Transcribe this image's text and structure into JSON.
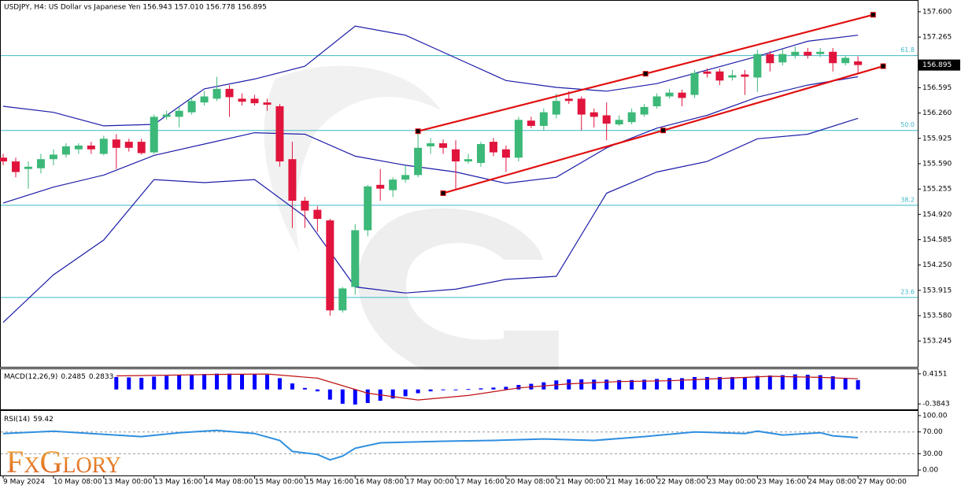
{
  "header": "USDJPY, H4:  US Dollar vs Japanese Yen  156.943 157.010 156.778 156.895",
  "logo": "FxGlory",
  "chart_data": [
    {
      "type": "candlestick",
      "xlim": [
        -0.19,
        72.75
      ],
      "xticks": [
        {
          "value": 0,
          "label": "9 May 2024"
        },
        {
          "value": 4,
          "label": "10 May 08:00"
        },
        {
          "value": 8,
          "label": "13 May 00:00"
        },
        {
          "value": 12,
          "label": "13 May 16:00"
        },
        {
          "value": 16,
          "label": "14 May 08:00"
        },
        {
          "value": 20,
          "label": "15 May 00:00"
        },
        {
          "value": 24,
          "label": "15 May 16:00"
        },
        {
          "value": 28,
          "label": "16 May 08:00"
        },
        {
          "value": 32,
          "label": "17 May 00:00"
        },
        {
          "value": 36,
          "label": "17 May 16:00"
        },
        {
          "value": 40,
          "label": "20 May 08:00"
        },
        {
          "value": 44,
          "label": "21 May 00:00"
        },
        {
          "value": 48,
          "label": "21 May 16:00"
        },
        {
          "value": 52,
          "label": "22 May 08:00"
        },
        {
          "value": 56,
          "label": "23 May 00:00"
        },
        {
          "value": 60,
          "label": "23 May 16:00"
        },
        {
          "value": 64,
          "label": "24 May 08:00"
        },
        {
          "value": 68,
          "label": "27 May 00:00"
        }
      ],
      "ylim": [
        152.903,
        157.745
      ],
      "yticks": [
        {
          "value": 157.6,
          "label": "157.600"
        },
        157.265,
        156.595,
        {
          "value": 156.26,
          "label": "156.260"
        },
        155.925,
        {
          "value": 155.59,
          "label": "155.590"
        },
        155.255,
        {
          "value": 154.92,
          "label": "154.920"
        },
        154.585,
        {
          "value": 154.25,
          "label": "154.250"
        },
        153.915,
        {
          "value": 153.58,
          "label": "153.580"
        },
        153.245
      ],
      "up_color": "#3cb878",
      "down_color": "#e0143c",
      "open": [
        155.67,
        155.62,
        155.52,
        155.53,
        155.65,
        155.71,
        155.78,
        155.83,
        155.72,
        155.91,
        155.88,
        155.88,
        155.74,
        156.21,
        156.21,
        156.27,
        156.4,
        156.45,
        156.58,
        156.45,
        156.45,
        156.4,
        156.35,
        155.65,
        155.1,
        154.98,
        154.84,
        153.65,
        153.96,
        154.71,
        155.31,
        155.24,
        155.38,
        155.44,
        155.82,
        155.86,
        155.78,
        155.62,
        155.6,
        155.88,
        155.78,
        155.67,
        156.16,
        156.09,
        156.24,
        156.45,
        156.45,
        156.27,
        156.23,
        156.11,
        156.14,
        156.24,
        156.35,
        156.48,
        156.53,
        156.5,
        156.81,
        156.81,
        156.73,
        156.77,
        156.73,
        157.04,
        156.93,
        157.02,
        157.07,
        157.04,
        157.07,
        156.92,
        156.943
      ],
      "high": [
        155.72,
        155.67,
        155.62,
        155.72,
        155.78,
        155.86,
        155.86,
        155.88,
        155.96,
        155.98,
        155.92,
        155.92,
        156.24,
        156.29,
        156.34,
        156.46,
        156.55,
        156.74,
        156.63,
        156.52,
        156.5,
        156.45,
        156.38,
        155.88,
        155.15,
        155.03,
        154.86,
        153.96,
        154.79,
        155.31,
        155.52,
        155.41,
        155.57,
        156.0,
        155.93,
        155.91,
        155.9,
        155.72,
        155.88,
        155.93,
        155.83,
        156.21,
        156.21,
        156.32,
        156.52,
        156.55,
        156.48,
        156.32,
        156.4,
        156.23,
        156.32,
        156.38,
        156.52,
        156.58,
        156.57,
        156.83,
        156.85,
        156.85,
        156.83,
        156.83,
        157.1,
        157.08,
        157.1,
        157.14,
        157.12,
        157.12,
        157.12,
        157.02,
        157.01
      ],
      "low": [
        155.57,
        155.41,
        155.26,
        155.46,
        155.57,
        155.67,
        155.72,
        155.72,
        155.7,
        155.52,
        155.75,
        155.71,
        155.72,
        156.17,
        156.07,
        156.24,
        156.36,
        156.42,
        156.21,
        156.36,
        156.36,
        156.29,
        155.55,
        154.74,
        154.74,
        154.69,
        153.58,
        153.62,
        153.86,
        154.63,
        155.1,
        155.15,
        155.34,
        155.41,
        155.72,
        155.72,
        155.26,
        155.59,
        155.55,
        155.69,
        155.48,
        155.62,
        156.06,
        156.03,
        156.19,
        156.38,
        156.03,
        156.07,
        155.9,
        156.09,
        156.11,
        156.21,
        156.32,
        156.45,
        156.35,
        156.46,
        156.73,
        156.63,
        156.69,
        156.5,
        156.54,
        156.81,
        156.89,
        156.98,
        156.98,
        157.0,
        156.81,
        156.89,
        156.778
      ],
      "close": [
        155.62,
        155.48,
        155.55,
        155.65,
        155.71,
        155.82,
        155.83,
        155.78,
        155.92,
        155.8,
        155.8,
        155.73,
        156.21,
        156.24,
        156.29,
        156.42,
        156.48,
        156.58,
        156.47,
        156.41,
        156.39,
        156.37,
        155.62,
        155.1,
        154.97,
        154.86,
        153.65,
        153.94,
        154.71,
        155.29,
        155.26,
        155.38,
        155.44,
        155.8,
        155.86,
        155.8,
        155.62,
        155.65,
        155.85,
        155.74,
        155.67,
        156.17,
        156.09,
        156.27,
        156.42,
        156.42,
        156.24,
        156.21,
        156.12,
        156.17,
        156.27,
        156.34,
        156.48,
        156.53,
        156.46,
        156.79,
        156.78,
        156.69,
        156.76,
        156.74,
        157.04,
        156.92,
        157.04,
        157.07,
        157.02,
        157.07,
        156.92,
        156.99,
        156.895
      ],
      "series": [
        {
          "color": "#1c1ca8",
          "x": [
            0,
            4,
            8,
            12,
            16,
            20,
            24,
            28,
            32,
            36,
            40,
            44,
            48,
            52,
            56,
            60,
            64,
            68
          ],
          "values": [
            156.35,
            156.27,
            156.09,
            156.11,
            156.58,
            156.71,
            156.88,
            157.41,
            157.29,
            156.99,
            156.69,
            156.6,
            156.55,
            156.65,
            156.83,
            157.01,
            157.21,
            157.29
          ]
        },
        {
          "color": "#1c1ca8",
          "x": [
            0,
            4,
            8,
            12,
            16,
            20,
            24,
            28,
            32,
            36,
            40,
            44,
            48,
            52,
            56,
            60,
            64,
            68
          ],
          "values": [
            155.07,
            155.28,
            155.44,
            155.7,
            155.85,
            156.0,
            155.98,
            155.69,
            155.57,
            155.48,
            155.33,
            155.41,
            155.8,
            156.06,
            156.23,
            156.47,
            156.63,
            156.74
          ]
        },
        {
          "color": "#1c1ca8",
          "x": [
            0,
            4,
            8,
            12,
            16,
            20,
            24,
            28,
            32,
            36,
            40,
            44,
            48,
            52,
            56,
            60,
            64,
            68
          ],
          "values": [
            153.49,
            154.12,
            154.58,
            155.38,
            155.34,
            155.38,
            154.89,
            153.96,
            153.88,
            153.93,
            154.06,
            154.1,
            155.2,
            155.48,
            155.62,
            155.92,
            155.98,
            156.19
          ]
        }
      ],
      "levels_color": "#3fb8c8",
      "levels": [
        {
          "label": "61.8",
          "value": 157.02
        },
        {
          "label": "50.0",
          "value": 156.03
        },
        {
          "label": "38.2",
          "value": 155.04
        },
        {
          "label": "23.6",
          "value": 153.82
        }
      ],
      "trendline_color": "#e01010",
      "trendlines": [
        {
          "x": [
            33,
            51.1,
            69.2
          ],
          "values": [
            156.02,
            156.78,
            157.56
          ]
        },
        {
          "x": [
            35,
            52.5,
            70
          ],
          "values": [
            155.2,
            156.03,
            156.88
          ]
        }
      ]
    },
    {
      "type": "bar",
      "ylim": [
        -0.528,
        0.538
      ],
      "yticks": [
        0.4151,
        -0.3843
      ],
      "series": [
        {
          "name": "MACD(12,26,9)",
          "color": "#0000ff",
          "values": [
            null,
            null,
            null,
            null,
            null,
            null,
            null,
            null,
            null,
            0.33,
            0.32,
            0.31,
            0.34,
            0.36,
            0.38,
            0.4,
            0.41,
            0.42,
            0.42,
            0.41,
            0.4,
            0.39,
            0.3,
            0.16,
            0.04,
            -0.05,
            -0.27,
            -0.38,
            -0.4,
            -0.36,
            -0.3,
            -0.24,
            -0.18,
            -0.1,
            -0.05,
            -0.02,
            -0.02,
            0.01,
            0.03,
            0.05,
            0.07,
            0.12,
            0.15,
            0.19,
            0.24,
            0.27,
            0.27,
            0.26,
            0.26,
            0.25,
            0.25,
            0.26,
            0.28,
            0.3,
            0.3,
            0.33,
            0.33,
            0.33,
            0.33,
            0.32,
            0.36,
            0.37,
            0.38,
            0.4,
            0.39,
            0.38,
            0.35,
            0.31,
            0.2485
          ]
        },
        {
          "type": "line",
          "color": "#c01010",
          "x": [
            9,
            13,
            17,
            21,
            25,
            29,
            33,
            37,
            41,
            45,
            49,
            53,
            57,
            61,
            65,
            68
          ],
          "values": [
            0.36,
            0.38,
            0.4,
            0.41,
            0.3,
            -0.1,
            -0.28,
            -0.16,
            0.04,
            0.15,
            0.21,
            0.23,
            0.29,
            0.35,
            0.32,
            0.2833
          ]
        }
      ]
    },
    {
      "type": "line",
      "ylim": [
        -10,
        108.6
      ],
      "yticks": [
        {
          "value": 100,
          "label": "100.00"
        },
        {
          "value": 70,
          "label": "70.00"
        },
        {
          "value": 30,
          "label": "30.00"
        },
        {
          "value": 0,
          "label": "0.00"
        }
      ],
      "dashed_levels": [
        70,
        30
      ],
      "series": [
        {
          "name": "RSI(14)",
          "color": "#2f8fe0",
          "x": [
            0,
            4,
            8,
            11,
            14,
            17,
            20,
            22,
            23,
            25,
            26,
            27,
            28,
            30,
            35,
            39,
            43,
            47,
            51,
            55,
            59,
            60,
            62,
            65,
            66,
            68
          ],
          "values": [
            67.1,
            71.4,
            65.7,
            61.4,
            68.6,
            72.9,
            67.1,
            54.3,
            34.3,
            28.6,
            18.6,
            25.7,
            40,
            50,
            52.9,
            54.3,
            57.1,
            54.3,
            61.4,
            70,
            67.1,
            71.4,
            64.3,
            68.6,
            62.9,
            59.42
          ]
        }
      ]
    }
  ]
}
